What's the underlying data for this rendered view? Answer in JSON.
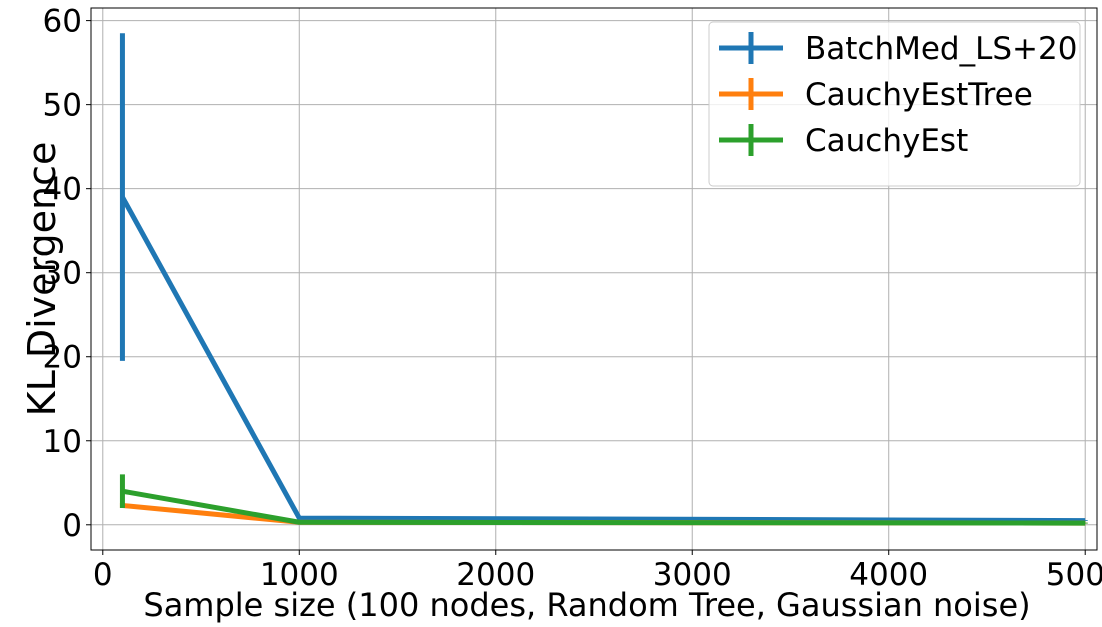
{
  "chart_data": {
    "type": "line",
    "xlabel": "Sample size (100 nodes, Random Tree, Gaussian noise)",
    "ylabel": "KL Divergence",
    "xlim": [
      -60,
      5060
    ],
    "ylim": [
      -3,
      61.5
    ],
    "xticks": [
      0,
      1000,
      2000,
      3000,
      4000,
      5000
    ],
    "yticks": [
      0,
      10,
      20,
      30,
      40,
      50,
      60
    ],
    "grid": true,
    "legend_position": "top-right",
    "x": [
      100,
      1000,
      5000
    ],
    "series": [
      {
        "name": "BatchMed_LS+20",
        "color": "#1f77b4",
        "values": [
          39.0,
          0.8,
          0.5
        ],
        "err": [
          19.5,
          0.05,
          0.05
        ]
      },
      {
        "name": "CauchyEstTree",
        "color": "#ff7f0e",
        "values": [
          2.3,
          0.3,
          0.2
        ],
        "err": [
          0.3,
          0.05,
          0.05
        ]
      },
      {
        "name": "CauchyEst",
        "color": "#2ca02c",
        "values": [
          4.0,
          0.3,
          0.2
        ],
        "err": [
          2.0,
          0.05,
          0.05
        ]
      }
    ]
  }
}
